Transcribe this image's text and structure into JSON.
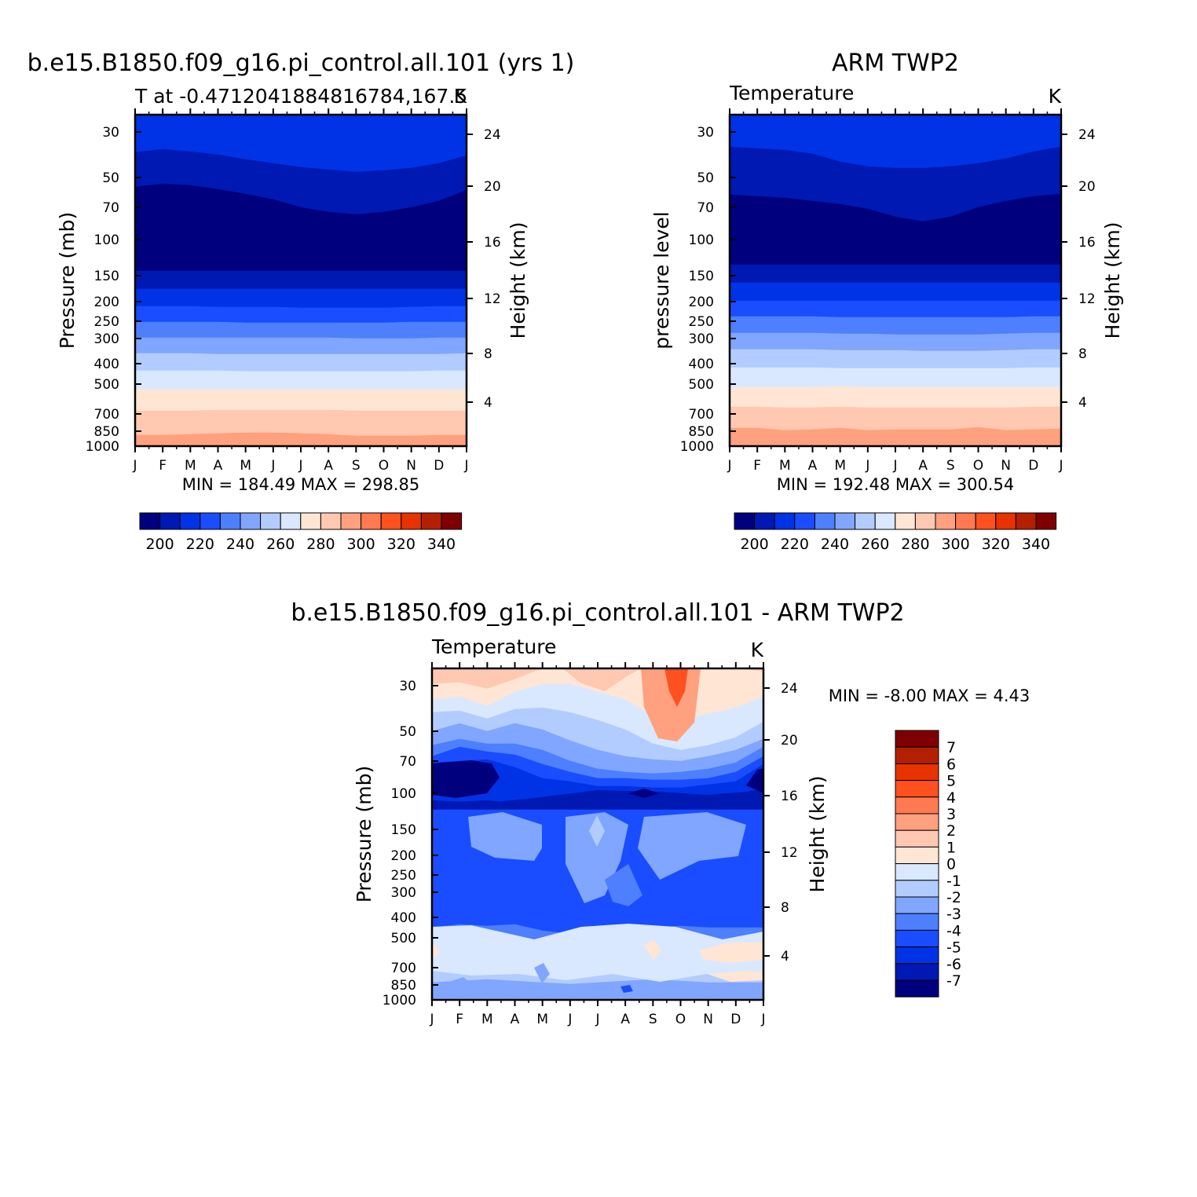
{
  "colors": {
    "abs_scale": [
      "#00007f",
      "#0019b3",
      "#0033e6",
      "#1a4dff",
      "#4d7fff",
      "#80a6ff",
      "#b3ccff",
      "#d9e8ff",
      "#ffe6d4",
      "#ffc8b0",
      "#ffa07f",
      "#ff7a50",
      "#ff5020",
      "#e63300",
      "#b32000",
      "#7f0000"
    ],
    "diff_scale": [
      "#00007f",
      "#0019b3",
      "#0033e6",
      "#1a4dff",
      "#4d7fff",
      "#80a6ff",
      "#b3ccff",
      "#d9e8ff",
      "#ffe6d4",
      "#ffc8b0",
      "#ffa07f",
      "#ff7a50",
      "#ff5020",
      "#e63300",
      "#b32000",
      "#7f0000"
    ]
  },
  "chart_data": [
    {
      "type": "heatmap",
      "panel": "model",
      "title": "b.e15.B1850.f09_g16.pi_control.all.101 (yrs 1)",
      "subtitle_left": "T at -0.4712041884816784,167.5",
      "subtitle_right": "K",
      "ylabel": "Pressure (mb)",
      "ylabel_right": "Height (km)",
      "x_ticks": [
        "J",
        "F",
        "M",
        "A",
        "M",
        "J",
        "J",
        "A",
        "S",
        "O",
        "N",
        "D",
        "J"
      ],
      "y_ticks": [
        "30",
        "50",
        "70",
        "100",
        "150",
        "200",
        "250",
        "300",
        "400",
        "500",
        "700",
        "850",
        "1000"
      ],
      "y_ticks_right": [
        "24",
        "20",
        "16",
        "12",
        "8",
        "4"
      ],
      "stats_text": "MIN = 184.49 MAX = 298.85",
      "min": 184.49,
      "max": 298.85,
      "colorbar_labels": [
        "200",
        "220",
        "240",
        "260",
        "280",
        "300",
        "320",
        "340"
      ],
      "colorbar_levels": [
        195,
        200,
        205,
        210,
        215,
        220,
        225,
        230,
        235,
        240,
        245,
        250,
        255,
        260,
        265,
        270,
        275,
        280,
        285,
        290,
        295,
        300,
        305,
        310,
        315,
        320,
        325,
        330,
        335,
        340
      ],
      "bands": [
        {
          "value_range": [
            215,
            225
          ],
          "class": 2
        },
        {
          "value_range": [
            205,
            215
          ],
          "class": 1
        },
        {
          "value_range": [
            184,
            205
          ],
          "class": 0
        },
        {
          "value_range": [
            205,
            215
          ],
          "class": 1
        },
        {
          "value_range": [
            215,
            225
          ],
          "class": 2
        },
        {
          "value_range": [
            225,
            235
          ],
          "class": 3
        },
        {
          "value_range": [
            235,
            245
          ],
          "class": 4
        },
        {
          "value_range": [
            245,
            255
          ],
          "class": 5
        },
        {
          "value_range": [
            255,
            265
          ],
          "class": 6
        },
        {
          "value_range": [
            265,
            275
          ],
          "class": 7
        },
        {
          "value_range": [
            275,
            285
          ],
          "class": 8
        },
        {
          "value_range": [
            285,
            295
          ],
          "class": 9
        },
        {
          "value_range": [
            295,
            299
          ],
          "class": 10
        }
      ]
    },
    {
      "type": "heatmap",
      "panel": "obs",
      "title": "ARM TWP2",
      "subtitle_left": "Temperature",
      "subtitle_right": "K",
      "ylabel": "pressure level",
      "ylabel_right": "Height (km)",
      "x_ticks": [
        "J",
        "F",
        "M",
        "A",
        "M",
        "J",
        "J",
        "A",
        "S",
        "O",
        "N",
        "D",
        "J"
      ],
      "y_ticks": [
        "30",
        "50",
        "70",
        "100",
        "150",
        "200",
        "250",
        "300",
        "400",
        "500",
        "700",
        "850",
        "1000"
      ],
      "y_ticks_right": [
        "24",
        "20",
        "16",
        "12",
        "8",
        "4"
      ],
      "stats_text": "MIN = 192.48 MAX = 300.54",
      "min": 192.48,
      "max": 300.54,
      "colorbar_labels": [
        "200",
        "220",
        "240",
        "260",
        "280",
        "300",
        "320",
        "340"
      ]
    },
    {
      "type": "heatmap",
      "panel": "difference",
      "title": "b.e15.B1850.f09_g16.pi_control.all.101 - ARM TWP2",
      "subtitle_left": "Temperature",
      "subtitle_right": "K",
      "ylabel": "Pressure (mb)",
      "ylabel_right": "Height (km)",
      "x_ticks": [
        "J",
        "F",
        "M",
        "A",
        "M",
        "J",
        "J",
        "A",
        "S",
        "O",
        "N",
        "D",
        "J"
      ],
      "y_ticks": [
        "30",
        "50",
        "70",
        "100",
        "150",
        "200",
        "250",
        "300",
        "400",
        "500",
        "700",
        "850",
        "1000"
      ],
      "y_ticks_right": [
        "24",
        "20",
        "16",
        "12",
        "8",
        "4"
      ],
      "stats_text": "MIN = -8.00 MAX = 4.43",
      "min": -8.0,
      "max": 4.43,
      "colorbar_labels": [
        "7",
        "6",
        "5",
        "4",
        "3",
        "2",
        "1",
        "0",
        "-1",
        "-2",
        "-3",
        "-4",
        "-5",
        "-6",
        "-7"
      ]
    }
  ]
}
